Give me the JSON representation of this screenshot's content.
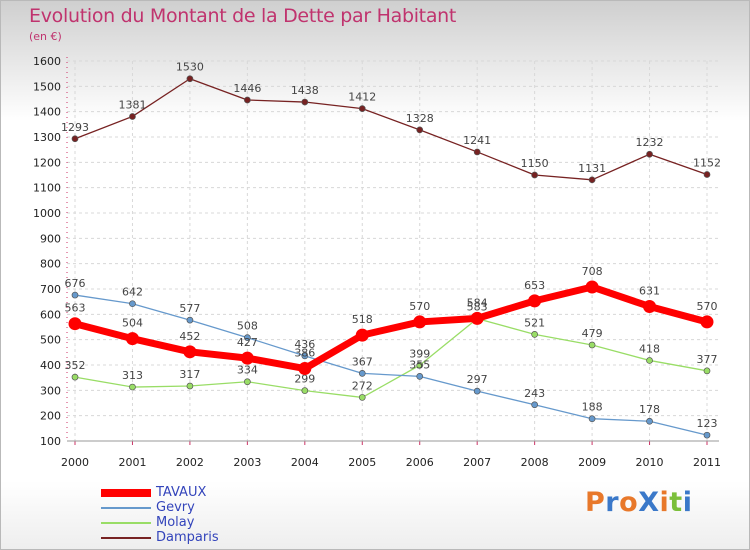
{
  "chart_data": {
    "type": "line",
    "title": "Evolution du Montant de la Dette par Habitant",
    "subtitle": "(en €)",
    "x": [
      "2000",
      "2001",
      "2002",
      "2003",
      "2004",
      "2005",
      "2006",
      "2007",
      "2008",
      "2009",
      "2010",
      "2011"
    ],
    "ylim": [
      100,
      1600
    ],
    "yticks": [
      100,
      200,
      300,
      400,
      500,
      600,
      700,
      800,
      900,
      1000,
      1100,
      1200,
      1300,
      1400,
      1500,
      1600
    ],
    "grid": true,
    "legend_position": "bottom-left",
    "series": [
      {
        "name": "TAVAUX",
        "color": "#ff0000",
        "values": [
          563,
          504,
          452,
          427,
          386,
          518,
          570,
          584,
          653,
          708,
          631,
          570
        ]
      },
      {
        "name": "Gevry",
        "color": "#6699cc",
        "values": [
          676,
          642,
          577,
          508,
          436,
          367,
          355,
          297,
          243,
          188,
          178,
          123
        ]
      },
      {
        "name": "Molay",
        "color": "#99dd66",
        "values": [
          352,
          313,
          317,
          334,
          299,
          272,
          399,
          583,
          521,
          479,
          418,
          377
        ]
      },
      {
        "name": "Damparis",
        "color": "#772222",
        "values": [
          1293,
          1381,
          1530,
          1446,
          1438,
          1412,
          1328,
          1241,
          1150,
          1131,
          1232,
          1152
        ]
      }
    ]
  },
  "logo": {
    "text": "ProXiti",
    "letters": [
      {
        "ch": "P",
        "color": "#e8782a"
      },
      {
        "ch": "r",
        "color": "#3a78c9"
      },
      {
        "ch": "o",
        "color": "#e8782a"
      },
      {
        "ch": "X",
        "color": "#3a78c9"
      },
      {
        "ch": "i",
        "color": "#e8782a"
      },
      {
        "ch": "t",
        "color": "#7bbf3a"
      },
      {
        "ch": "i",
        "color": "#3a78c9"
      }
    ]
  }
}
